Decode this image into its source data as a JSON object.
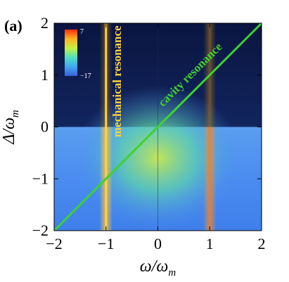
{
  "panel_label": "(a)",
  "chart_data": {
    "type": "heatmap",
    "xlabel": "ω/ω",
    "xlabel_sub": "m",
    "ylabel": "Δ/ω",
    "ylabel_sub": "m",
    "xlim": [
      -2,
      2
    ],
    "ylim": [
      -2,
      2
    ],
    "x_ticks": [
      -2,
      -1,
      0,
      1,
      2
    ],
    "y_ticks": [
      -2,
      -1,
      0,
      1,
      2
    ],
    "x_tick_labels": [
      "−2",
      "−1",
      "0",
      "1",
      "2"
    ],
    "y_tick_labels": [
      "−2",
      "−1",
      "0",
      "1",
      "2"
    ],
    "colorbar": {
      "max_label": "7",
      "min_label": "−17",
      "min": -17,
      "max": 7,
      "placement": "top-left"
    },
    "annotations": [
      {
        "text": "mechanical resonance",
        "line": "vertical",
        "x": -1,
        "color": "#ffd23c"
      },
      {
        "text": "cavity resonance",
        "line": "diagonal",
        "from": [
          -2,
          -2
        ],
        "to": [
          2,
          2
        ],
        "color": "#3fd22f"
      }
    ]
  }
}
